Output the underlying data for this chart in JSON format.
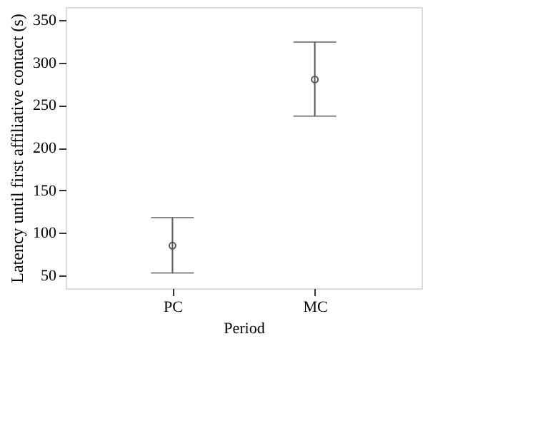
{
  "chart_data": {
    "type": "scatter",
    "xlabel": "Period",
    "ylabel": "Latency until first affiliative contact (s)",
    "categories": [
      "PC",
      "MC"
    ],
    "values": [
      85,
      280
    ],
    "errors": [
      [
        53,
        118
      ],
      [
        237,
        324
      ]
    ],
    "color": "#555555",
    "marker": "circle",
    "ylim": [
      35,
      365
    ],
    "yticks": [
      50,
      100,
      150,
      200,
      250,
      300,
      350
    ],
    "grid": false
  }
}
